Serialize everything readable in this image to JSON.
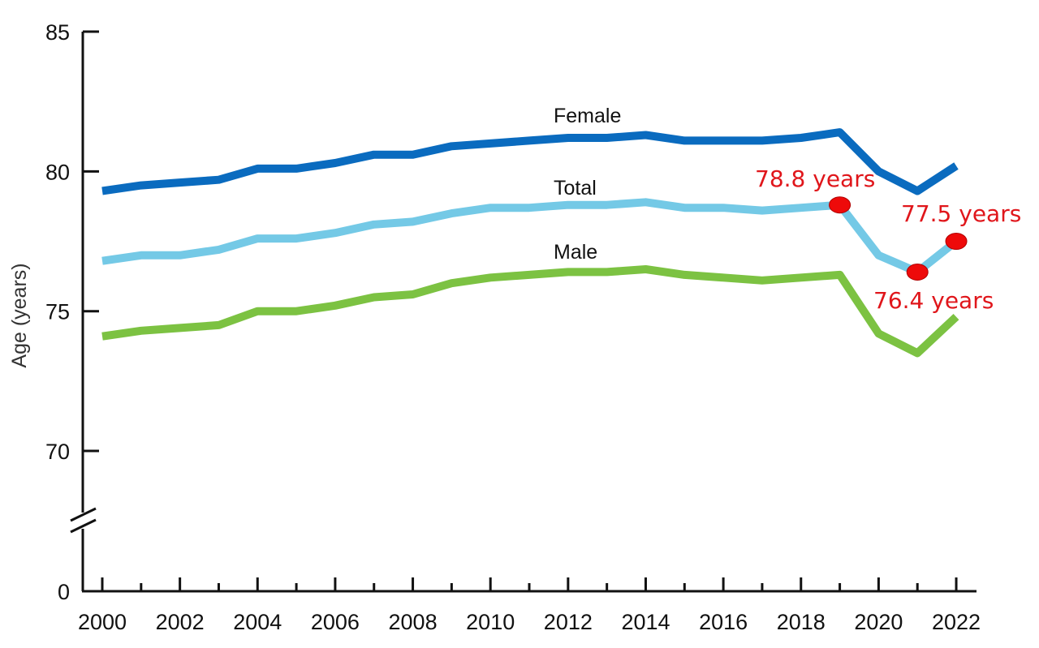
{
  "chart_data": {
    "type": "line",
    "title": "",
    "xlabel": "",
    "ylabel": "Age (years)",
    "x": [
      2000,
      2001,
      2002,
      2003,
      2004,
      2005,
      2006,
      2007,
      2008,
      2009,
      2010,
      2011,
      2012,
      2013,
      2014,
      2015,
      2016,
      2017,
      2018,
      2019,
      2020,
      2021,
      2022
    ],
    "x_tick_labels": [
      "2000",
      "2002",
      "2004",
      "2006",
      "2008",
      "2010",
      "2012",
      "2014",
      "2016",
      "2018",
      "2020",
      "2022"
    ],
    "y_tick_labels": [
      "0",
      "70",
      "75",
      "80",
      "85"
    ],
    "ylim": [
      70,
      85
    ],
    "y_axis_break": true,
    "grid": false,
    "series": [
      {
        "name": "Female",
        "color": "#0a6bbf",
        "values": [
          79.3,
          79.5,
          79.6,
          79.7,
          80.1,
          80.1,
          80.3,
          80.6,
          80.6,
          80.9,
          81.0,
          81.1,
          81.2,
          81.2,
          81.3,
          81.1,
          81.1,
          81.1,
          81.2,
          81.4,
          80.0,
          79.3,
          80.2
        ]
      },
      {
        "name": "Total",
        "color": "#74c9e6",
        "values": [
          76.8,
          77.0,
          77.0,
          77.2,
          77.6,
          77.6,
          77.8,
          78.1,
          78.2,
          78.5,
          78.7,
          78.7,
          78.8,
          78.8,
          78.9,
          78.7,
          78.7,
          78.6,
          78.7,
          78.8,
          77.0,
          76.4,
          77.5
        ]
      },
      {
        "name": "Male",
        "color": "#7cc242",
        "values": [
          74.1,
          74.3,
          74.4,
          74.5,
          75.0,
          75.0,
          75.2,
          75.5,
          75.6,
          76.0,
          76.2,
          76.3,
          76.4,
          76.4,
          76.5,
          76.3,
          76.2,
          76.1,
          76.2,
          76.3,
          74.2,
          73.5,
          74.8
        ]
      }
    ],
    "annotations": [
      {
        "x": 2019,
        "y": 78.8,
        "text": "78.8 years",
        "color": "#e0161b"
      },
      {
        "x": 2021,
        "y": 76.4,
        "text": "76.4 years",
        "color": "#e0161b"
      },
      {
        "x": 2022,
        "y": 77.5,
        "text": "77.5 years",
        "color": "#e0161b"
      }
    ]
  }
}
